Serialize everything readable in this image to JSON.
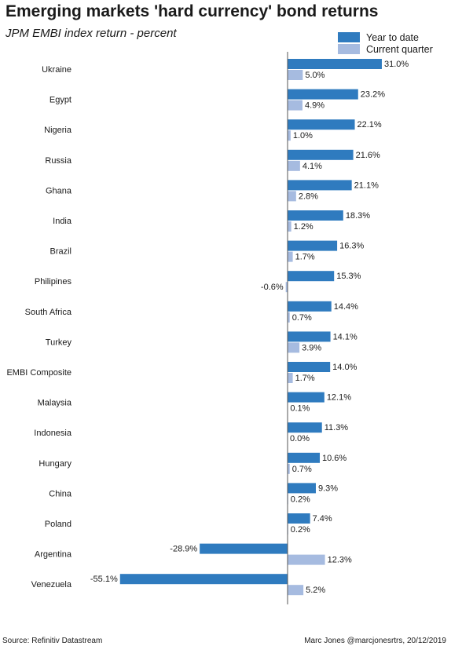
{
  "title": "Emerging markets 'hard currency' bond returns",
  "subtitle": "JPM EMBI index return - percent",
  "footer": {
    "source": "Source: Refinitiv Datastream",
    "credit": "Marc Jones @marcjonesrtrs, 20/12/2019"
  },
  "colors": {
    "ytd": "#2f7bbf",
    "quarter": "#a6bbe0",
    "axis": "#555555"
  },
  "chart_data": {
    "type": "bar",
    "orientation": "horizontal",
    "categories": [
      "Ukraine",
      "Egypt",
      "Nigeria",
      "Russia",
      "Ghana",
      "India",
      "Brazil",
      "Philipines",
      "South Africa",
      "Turkey",
      "EMBI Composite",
      "Malaysia",
      "Indonesia",
      "Hungary",
      "China",
      "Poland",
      "Argentina",
      "Venezuela"
    ],
    "series": [
      {
        "name": "Year to date",
        "values": [
          31.0,
          23.2,
          22.1,
          21.6,
          21.1,
          18.3,
          16.3,
          15.3,
          14.4,
          14.1,
          14.0,
          12.1,
          11.3,
          10.6,
          9.3,
          7.4,
          -28.9,
          -55.1
        ]
      },
      {
        "name": "Current quarter",
        "values": [
          5.0,
          4.9,
          1.0,
          4.1,
          2.8,
          1.2,
          1.7,
          -0.6,
          0.7,
          3.9,
          1.7,
          0.1,
          0.0,
          0.7,
          0.2,
          0.2,
          12.3,
          5.2
        ]
      }
    ],
    "value_format": "%",
    "legend_position": "top-right",
    "grid": false,
    "xlim": [
      -58,
      32
    ]
  }
}
